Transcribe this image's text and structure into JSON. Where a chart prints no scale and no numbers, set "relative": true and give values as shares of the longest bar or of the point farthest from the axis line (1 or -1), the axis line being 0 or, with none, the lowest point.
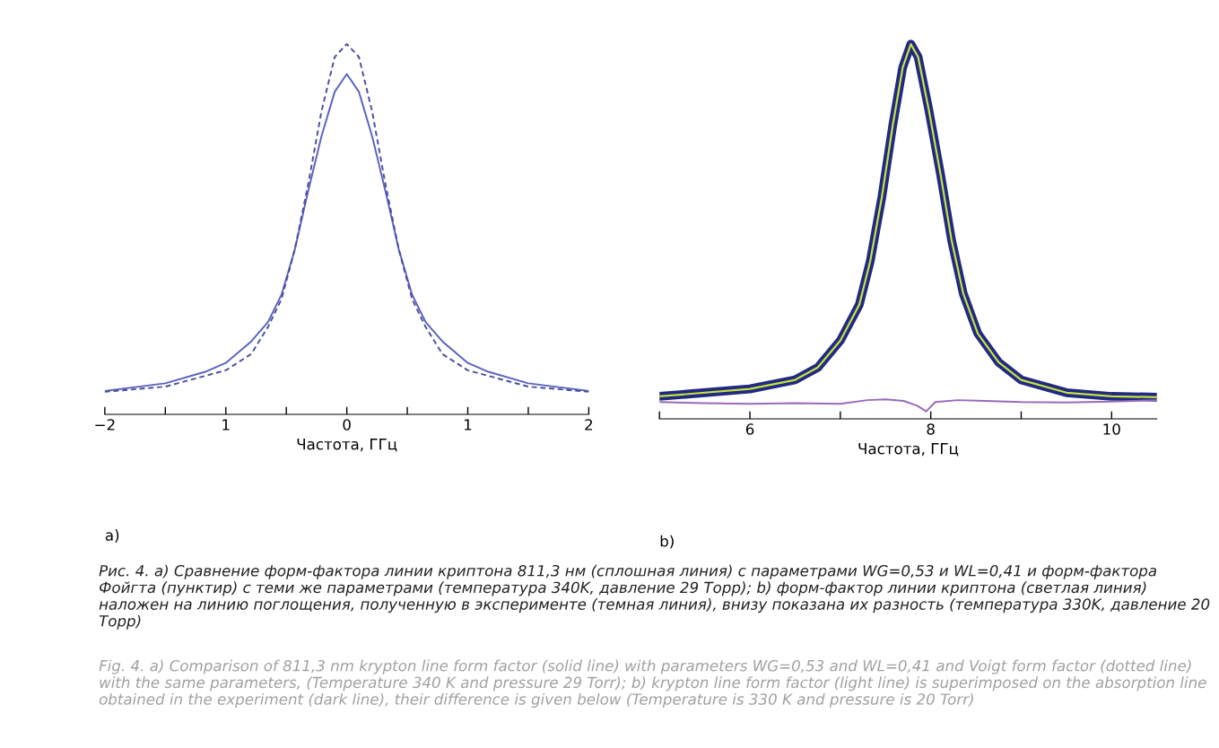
{
  "chart_data": [
    {
      "type": "line",
      "relative": true,
      "xlabel": "Частота, ГГц",
      "xlim": [
        -2,
        2
      ],
      "xticks": [
        {
          "value": -2,
          "label": "−2"
        },
        {
          "value": -1.5,
          "label": null
        },
        {
          "value": -1,
          "label": "1"
        },
        {
          "value": -0.5,
          "label": null
        },
        0,
        {
          "value": 0.5,
          "label": null
        },
        1,
        {
          "value": 1.5,
          "label": null
        },
        2
      ],
      "tick_labels": "x",
      "series": [
        {
          "color": "#5a62c0",
          "line_style": "solid",
          "x": [
            -2.0,
            -1.5,
            -1.17,
            -1.0,
            -0.79,
            -0.65,
            -0.54,
            -0.43,
            -0.32,
            -0.21,
            -0.1,
            0,
            0.1,
            0.21,
            0.32,
            0.43,
            0.54,
            0.65,
            0.79,
            1.0,
            1.17,
            1.5,
            2.0
          ],
          "values": [
            0.063,
            0.084,
            0.115,
            0.139,
            0.197,
            0.25,
            0.323,
            0.445,
            0.602,
            0.75,
            0.871,
            0.919,
            0.871,
            0.75,
            0.602,
            0.445,
            0.323,
            0.25,
            0.197,
            0.139,
            0.115,
            0.084,
            0.063
          ]
        },
        {
          "color": "#4a4f9e",
          "line_style": "dashed",
          "x": [
            -2.0,
            -1.5,
            -1.0,
            -0.79,
            -0.65,
            -0.54,
            -0.43,
            -0.32,
            -0.21,
            -0.1,
            0,
            0.1,
            0.21,
            0.32,
            0.43,
            0.54,
            0.65,
            0.79,
            1.0,
            1.5,
            2.0
          ],
          "values": [
            0.061,
            0.075,
            0.119,
            0.163,
            0.237,
            0.311,
            0.445,
            0.62,
            0.817,
            0.965,
            1.0,
            0.965,
            0.817,
            0.62,
            0.445,
            0.311,
            0.237,
            0.163,
            0.119,
            0.075,
            0.061
          ]
        }
      ],
      "annotations": [
        "a)",
        "Рис. 4. a) Сравнение форм-фактора линии криптона 811,3 нм (сплошная линия) с параметрами WG=0,53 и WL=0,41 и форм-фактора Фойгта (пунктир) с теми же параметрами (температура 340K, давление 29 Торр); b) форм-фактор линии криптона (светлая линия) наложен на линию поглощения, полученную в эксперименте (темная линия), внизу показана их разность (температура 330K, давление 20 Торр)",
        "Fig. 4. a) Comparison of 811,3 nm krypton line form factor (solid line) with parameters WG=0,53 and WL=0,41 and Voigt form factor (dotted line) with the same parameters, (Temperature 340 K and pressure 29 Torr); b) krypton line form factor (light line) is superimposed on the absorption line obtained in the experiment (dark line), their difference is given below (Temperature is 330 K and pressure is 20 Torr)"
      ]
    },
    {
      "type": "line",
      "relative": true,
      "xlabel": "Частота, ГГц",
      "xlim": [
        5,
        10.5
      ],
      "xticks": [
        {
          "value": 5,
          "label": null
        },
        6,
        {
          "value": 7,
          "label": null
        },
        8,
        {
          "value": 9,
          "label": null
        },
        10
      ],
      "tick_labels": "x",
      "series": [
        {
          "color": "#1f2a80",
          "line_style": "solid",
          "x": [
            5.0,
            6.0,
            6.5,
            6.75,
            7.0,
            7.21,
            7.33,
            7.46,
            7.58,
            7.69,
            7.78,
            7.86,
            7.98,
            8.11,
            8.23,
            8.36,
            8.52,
            8.75,
            9.0,
            9.5,
            10.0,
            10.5
          ],
          "values": [
            0.06,
            0.08,
            0.104,
            0.137,
            0.209,
            0.305,
            0.42,
            0.593,
            0.784,
            0.938,
            1.0,
            0.966,
            0.823,
            0.65,
            0.477,
            0.334,
            0.228,
            0.151,
            0.104,
            0.07,
            0.06,
            0.058
          ]
        },
        {
          "color": "#c8e040",
          "line_style": "solid",
          "x": [
            5.0,
            6.0,
            6.5,
            6.75,
            7.0,
            7.21,
            7.33,
            7.46,
            7.58,
            7.69,
            7.78,
            7.86,
            7.98,
            8.11,
            8.23,
            8.36,
            8.52,
            8.75,
            9.0,
            9.5,
            10.0,
            10.5
          ],
          "values": [
            0.06,
            0.08,
            0.104,
            0.137,
            0.209,
            0.305,
            0.42,
            0.593,
            0.784,
            0.938,
            1.0,
            0.966,
            0.823,
            0.65,
            0.477,
            0.334,
            0.228,
            0.151,
            0.104,
            0.07,
            0.06,
            0.058
          ]
        },
        {
          "color": "#9a6ab8",
          "line_style": "solid",
          "x": [
            5.0,
            5.5,
            6.0,
            6.5,
            7.0,
            7.3,
            7.5,
            7.7,
            7.85,
            7.95,
            8.05,
            8.3,
            8.6,
            9.0,
            9.5,
            10.0,
            10.5
          ],
          "values": [
            0.045,
            0.042,
            0.04,
            0.042,
            0.04,
            0.05,
            0.052,
            0.048,
            0.035,
            0.02,
            0.045,
            0.05,
            0.048,
            0.045,
            0.044,
            0.046,
            0.05
          ]
        }
      ],
      "annotations": [
        "b)"
      ]
    }
  ]
}
